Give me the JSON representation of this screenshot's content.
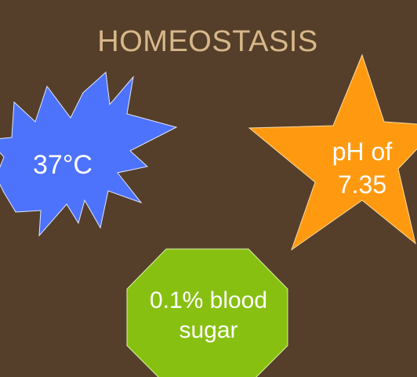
{
  "slide": {
    "title": "HOMEOSTASIS",
    "background_color": "#553f2a",
    "title_color": "#d8b88a"
  },
  "shapes": {
    "temperature": {
      "text": "37°C",
      "color": "#4d72fb",
      "shape": "explosion-burst"
    },
    "ph": {
      "line1": "pH of",
      "line2": "7.35",
      "color": "#ff9a10",
      "shape": "five-point-star"
    },
    "blood_sugar": {
      "line1": "0.1% blood",
      "line2": "sugar",
      "color": "#88c012",
      "shape": "octagon"
    }
  }
}
